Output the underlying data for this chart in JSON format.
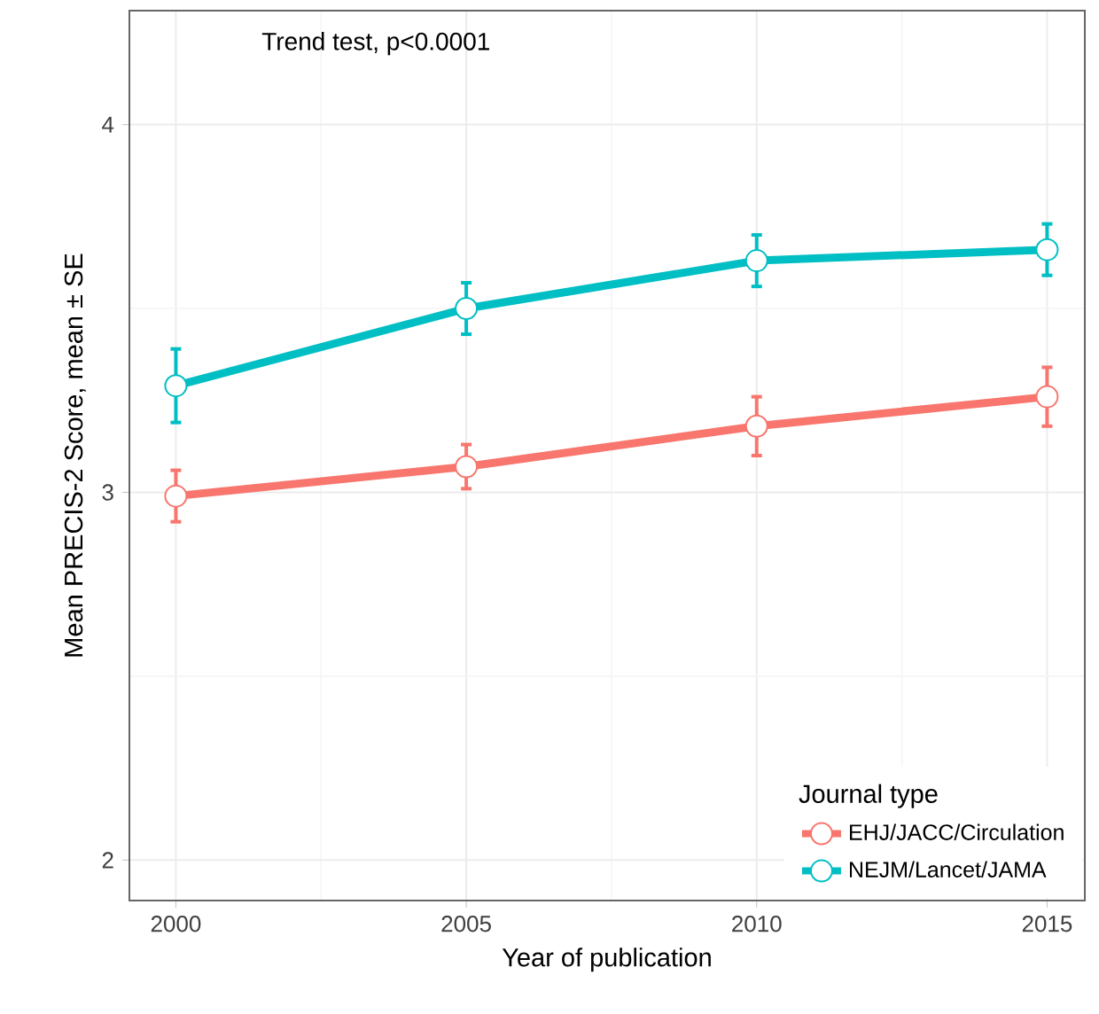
{
  "chart_data": {
    "type": "line",
    "xlabel": "Year of publication",
    "ylabel": "Mean PRECIS-2 Score, mean ± SE",
    "legend_title": "Journal type",
    "annotations": [
      "Trend test, p<0.0001"
    ],
    "x": [
      2000,
      2005,
      2010,
      2015
    ],
    "series": [
      {
        "name": "EHJ/JACC/Circulation",
        "color": "#f8766d",
        "values": [
          2.99,
          3.07,
          3.18,
          3.26
        ],
        "errors": [
          0.07,
          0.06,
          0.08,
          0.08
        ]
      },
      {
        "name": "NEJM/Lancet/JAMA",
        "color": "#00bfc4",
        "values": [
          3.29,
          3.5,
          3.63,
          3.66
        ],
        "errors": [
          0.1,
          0.07,
          0.07,
          0.07
        ]
      }
    ],
    "xlim": [
      1999.2,
      2015.65
    ],
    "ylim": [
      1.89,
      4.31
    ],
    "xticks": [
      2000,
      2005,
      2010,
      2015
    ],
    "yticks": [
      2,
      3,
      4
    ],
    "grid": true,
    "legend": "bottom right",
    "marker": "circle",
    "line_style": "solid"
  }
}
